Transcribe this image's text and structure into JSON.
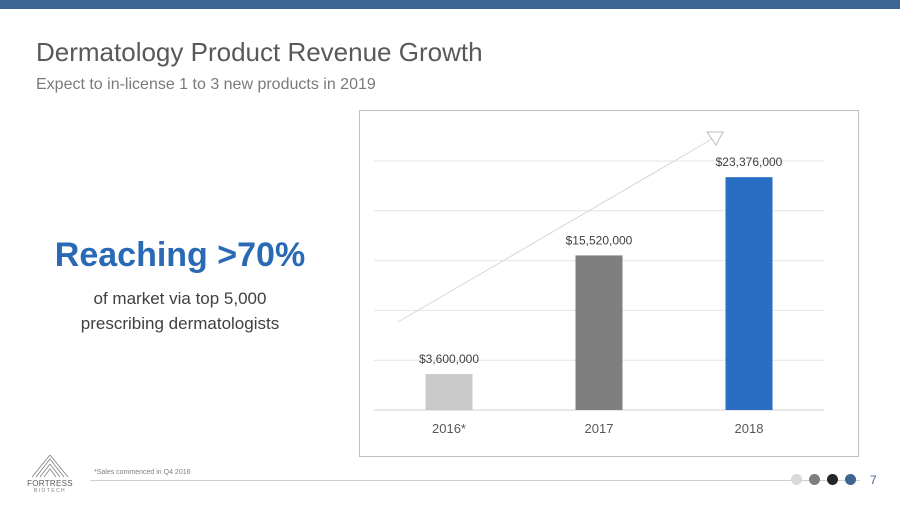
{
  "slide": {
    "title": "Dermatology Product Revenue Growth",
    "subtitle": "Expect to in-license 1 to 3 new products in 2019",
    "callout_head": "Reaching >70%",
    "callout_line1": "of market via top 5,000",
    "callout_line2": "prescribing dermatologists",
    "footnote": "*Sales commenced in Q4 2016",
    "page_number": "7",
    "logo_text": "FORTRESS",
    "logo_subtext": "BIOTECH",
    "accent_color": "#3d6593",
    "nav_dot_colors": [
      "#d9d9d9",
      "#7f7f7f",
      "#262626",
      "#3d6593"
    ]
  },
  "chart_data": {
    "type": "bar",
    "categories": [
      "2016*",
      "2017",
      "2018"
    ],
    "values": [
      3600000,
      15520000,
      23376000
    ],
    "data_labels": [
      "$3,600,000",
      "$15,520,000",
      "$23,376,000"
    ],
    "colors": [
      "#c9c9c9",
      "#7f7f7f",
      "#2a6ec4"
    ],
    "ylim": [
      0,
      25000000
    ],
    "grid": true,
    "trend_arrow": true,
    "title": "",
    "xlabel": "",
    "ylabel": ""
  }
}
